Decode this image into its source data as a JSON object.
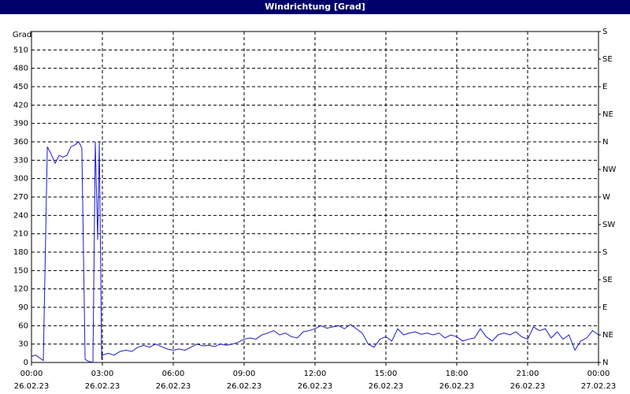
{
  "chart_data": {
    "type": "line",
    "title": "Windrichtung [Grad]",
    "y_label": "Grad",
    "x": [
      0,
      0.17,
      0.33,
      0.5,
      0.67,
      0.83,
      1.0,
      1.17,
      1.33,
      1.5,
      1.67,
      1.83,
      2.0,
      2.13,
      2.27,
      2.4,
      2.6,
      2.7,
      2.8,
      2.87,
      2.97,
      3.0,
      3.25,
      3.5,
      3.75,
      4.0,
      4.25,
      4.5,
      4.75,
      5.0,
      5.25,
      5.5,
      5.75,
      6.0,
      6.25,
      6.5,
      6.75,
      7.0,
      7.25,
      7.5,
      7.75,
      8.0,
      8.25,
      8.5,
      8.75,
      9.0,
      9.25,
      9.5,
      9.75,
      10.0,
      10.25,
      10.5,
      10.75,
      11.0,
      11.25,
      11.5,
      11.75,
      12.0,
      12.25,
      12.5,
      12.75,
      13.0,
      13.25,
      13.5,
      13.75,
      14.0,
      14.25,
      14.5,
      14.75,
      15.0,
      15.25,
      15.5,
      15.75,
      16.0,
      16.25,
      16.5,
      16.75,
      17.0,
      17.25,
      17.5,
      17.75,
      18.0,
      18.25,
      18.5,
      18.75,
      19.0,
      19.25,
      19.5,
      19.75,
      20.0,
      20.25,
      20.5,
      20.75,
      21.0,
      21.25,
      21.5,
      21.75,
      22.0,
      22.25,
      22.5,
      22.75,
      23.0,
      23.25,
      23.5,
      23.75,
      24.0
    ],
    "series": [
      {
        "color": "#1a1ad0",
        "values": [
          10,
          12,
          8,
          3,
          352,
          340,
          325,
          338,
          335,
          338,
          352,
          355,
          360,
          350,
          5,
          2,
          0,
          360,
          200,
          360,
          5,
          12,
          15,
          12,
          18,
          20,
          18,
          25,
          28,
          25,
          30,
          26,
          22,
          20,
          22,
          20,
          25,
          30,
          27,
          28,
          26,
          30,
          28,
          30,
          33,
          38,
          40,
          38,
          45,
          48,
          52,
          45,
          48,
          42,
          40,
          50,
          52,
          55,
          60,
          56,
          58,
          60,
          55,
          62,
          55,
          48,
          30,
          25,
          38,
          42,
          35,
          55,
          45,
          48,
          50,
          46,
          48,
          45,
          48,
          40,
          45,
          42,
          35,
          38,
          40,
          55,
          42,
          35,
          45,
          48,
          45,
          50,
          42,
          38,
          58,
          52,
          55,
          40,
          50,
          38,
          45,
          20,
          35,
          40,
          52,
          45
        ]
      }
    ],
    "xlim": [
      0,
      24
    ],
    "xticks": [
      {
        "value": 0,
        "label": "00:00"
      },
      {
        "value": 3,
        "label": "03:00"
      },
      {
        "value": 6,
        "label": "06:00"
      },
      {
        "value": 9,
        "label": "09:00"
      },
      {
        "value": 12,
        "label": "12:00"
      },
      {
        "value": 15,
        "label": "15:00"
      },
      {
        "value": 18,
        "label": "18:00"
      },
      {
        "value": 21,
        "label": "21:00"
      },
      {
        "value": 24,
        "label": "00:00"
      }
    ],
    "xtick_dates": [
      "26.02.23",
      "26.02.23",
      "26.02.23",
      "26.02.23",
      "26.02.23",
      "26.02.23",
      "26.02.23",
      "26.02.23",
      "27.02.23"
    ],
    "ylim": [
      0,
      540
    ],
    "yticks": [
      0,
      30,
      60,
      90,
      120,
      150,
      180,
      210,
      240,
      270,
      300,
      330,
      360,
      390,
      420,
      450,
      480,
      510
    ],
    "y2lim": [
      0,
      540
    ],
    "y2ticks": [
      {
        "value": 0,
        "label": "N"
      },
      {
        "value": 45,
        "label": "NE"
      },
      {
        "value": 90,
        "label": "E"
      },
      {
        "value": 135,
        "label": "SE"
      },
      {
        "value": 180,
        "label": "S"
      },
      {
        "value": 225,
        "label": "SW"
      },
      {
        "value": 270,
        "label": "W"
      },
      {
        "value": 315,
        "label": "NW"
      },
      {
        "value": 360,
        "label": "N"
      },
      {
        "value": 405,
        "label": "NE"
      },
      {
        "value": 450,
        "label": "E"
      },
      {
        "value": 495,
        "label": "SE"
      },
      {
        "value": 540,
        "label": "S"
      }
    ],
    "grid": true
  }
}
